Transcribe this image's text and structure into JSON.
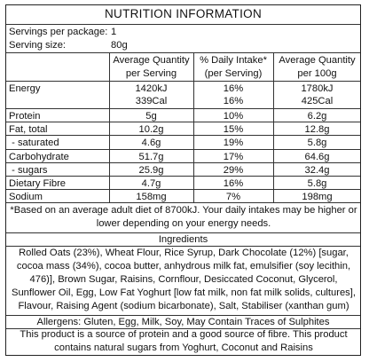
{
  "title": "NUTRITION INFORMATION",
  "servings": {
    "per_package_label": "Servings per package:",
    "per_package_value": "1",
    "size_label": "Serving size:",
    "size_value": "80g"
  },
  "columns": {
    "qty_serving_l1": "Average Quantity",
    "qty_serving_l2": "per Serving",
    "daily_l1": "% Daily Intake*",
    "daily_l2": "(per Serving)",
    "qty_100_l1": "Average Quantity",
    "qty_100_l2": "per 100g"
  },
  "rows": [
    {
      "name": "Energy",
      "serving": "1420kJ",
      "daily": "16%",
      "per100": "1780kJ"
    },
    {
      "name": "",
      "serving": "339Cal",
      "daily": "16%",
      "per100": "425Cal"
    },
    {
      "name": "Protein",
      "serving": "5g",
      "daily": "10%",
      "per100": "6.2g"
    },
    {
      "name": "Fat, total",
      "serving": "10.2g",
      "daily": "15%",
      "per100": "12.8g"
    },
    {
      "name": " - saturated",
      "serving": "4.6g",
      "daily": "19%",
      "per100": "5.8g"
    },
    {
      "name": "Carbohydrate",
      "serving": "51.7g",
      "daily": "17%",
      "per100": "64.6g"
    },
    {
      "name": " - sugars",
      "serving": "25.9g",
      "daily": "29%",
      "per100": "32.4g"
    },
    {
      "name": "Dietary Fibre",
      "serving": "4.7g",
      "daily": "16%",
      "per100": "5.8g"
    },
    {
      "name": "Sodium",
      "serving": "158mg",
      "daily": "7%",
      "per100": "198mg"
    }
  ],
  "footnote": "*Based on an average adult diet of 8700kJ. Your daily intakes may be higher or lower depending on your energy needs.",
  "ingredients_heading": "Ingredients",
  "ingredients": "Rolled Oats (23%), Wheat Flour, Rice Syrup, Dark Chocolate (12%) [sugar, cocoa mass (34%), cocoa butter, anhydrous milk fat, emulsifier (soy lecithin, 476)], Brown Sugar, Raisins, Cornflour, Desiccated Coconut, Glycerol, Sunflower Oil, Egg, Low Fat Yoghurt [low fat milk, non fat milk solids, cultures], Flavour, Raising Agent (sodium bicarbonate), Salt, Stabiliser (xanthan gum)",
  "allergens": "Allergens: Gluten, Egg, Milk, Soy, May Contain Traces of Sulphites",
  "claim": "This product is a source of protein and a good source of fibre. This product contains natural sugars from Yoghurt, Coconut and Raisins"
}
